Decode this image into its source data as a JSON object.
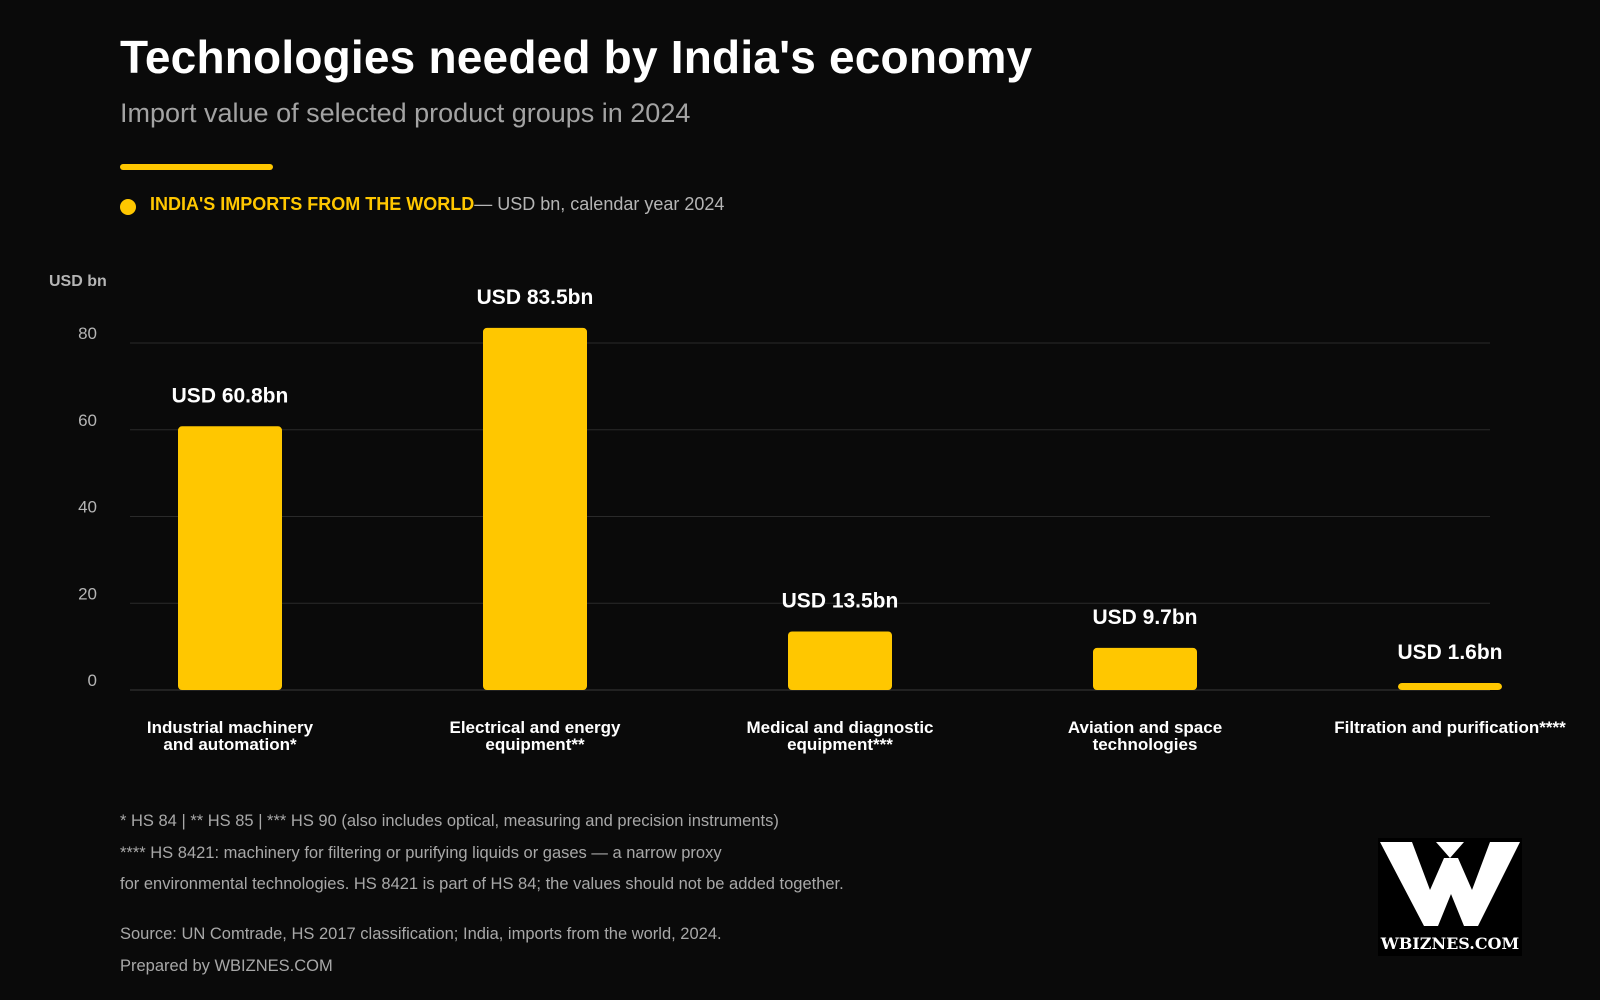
{
  "title": "Technologies needed by India's economy",
  "subtitle": "Import value of selected product groups in 2024",
  "legend": {
    "label": "INDIA'S IMPORTS FROM THE WORLD",
    "note": "— USD bn, calendar year 2024"
  },
  "colors": {
    "bar": "#ffc700",
    "background": "#0a0a0a",
    "grid": "#2a2a2a"
  },
  "chart_data": {
    "type": "bar",
    "ylabel": "USD bn",
    "ylim": [
      0,
      80
    ],
    "yticks": [
      0,
      20,
      40,
      60,
      80
    ],
    "grid": true,
    "categories": [
      [
        "Industrial machinery",
        "and automation*"
      ],
      [
        "Electrical and energy",
        "equipment**"
      ],
      [
        "Medical and diagnostic",
        "equipment***"
      ],
      [
        "Aviation and space",
        "technologies"
      ],
      [
        "Filtration and purification****"
      ]
    ],
    "values": [
      60.8,
      83.5,
      13.5,
      9.7,
      1.6
    ],
    "data_labels": [
      "USD 60.8bn",
      "USD 83.5bn",
      "USD 13.5bn",
      "USD 9.7bn",
      "USD 1.6bn"
    ]
  },
  "footnotes": {
    "line1": "* HS 84  |  ** HS 85  |  *** HS 90 (also includes optical, measuring and precision instruments)",
    "line2": "**** HS 8421: machinery for filtering or purifying liquids or gases — a narrow proxy",
    "line3": "for environmental technologies. HS 8421 is part of HS 84; the values should not be added together.",
    "source": "Source: UN Comtrade, HS 2017 classification; India, imports from the world, 2024.",
    "prepared": "Prepared by WBIZNES.COM"
  },
  "logo": {
    "text": "WBIZNES.COM",
    "mark": "®",
    "icon": "wbiznes-w-logo"
  }
}
